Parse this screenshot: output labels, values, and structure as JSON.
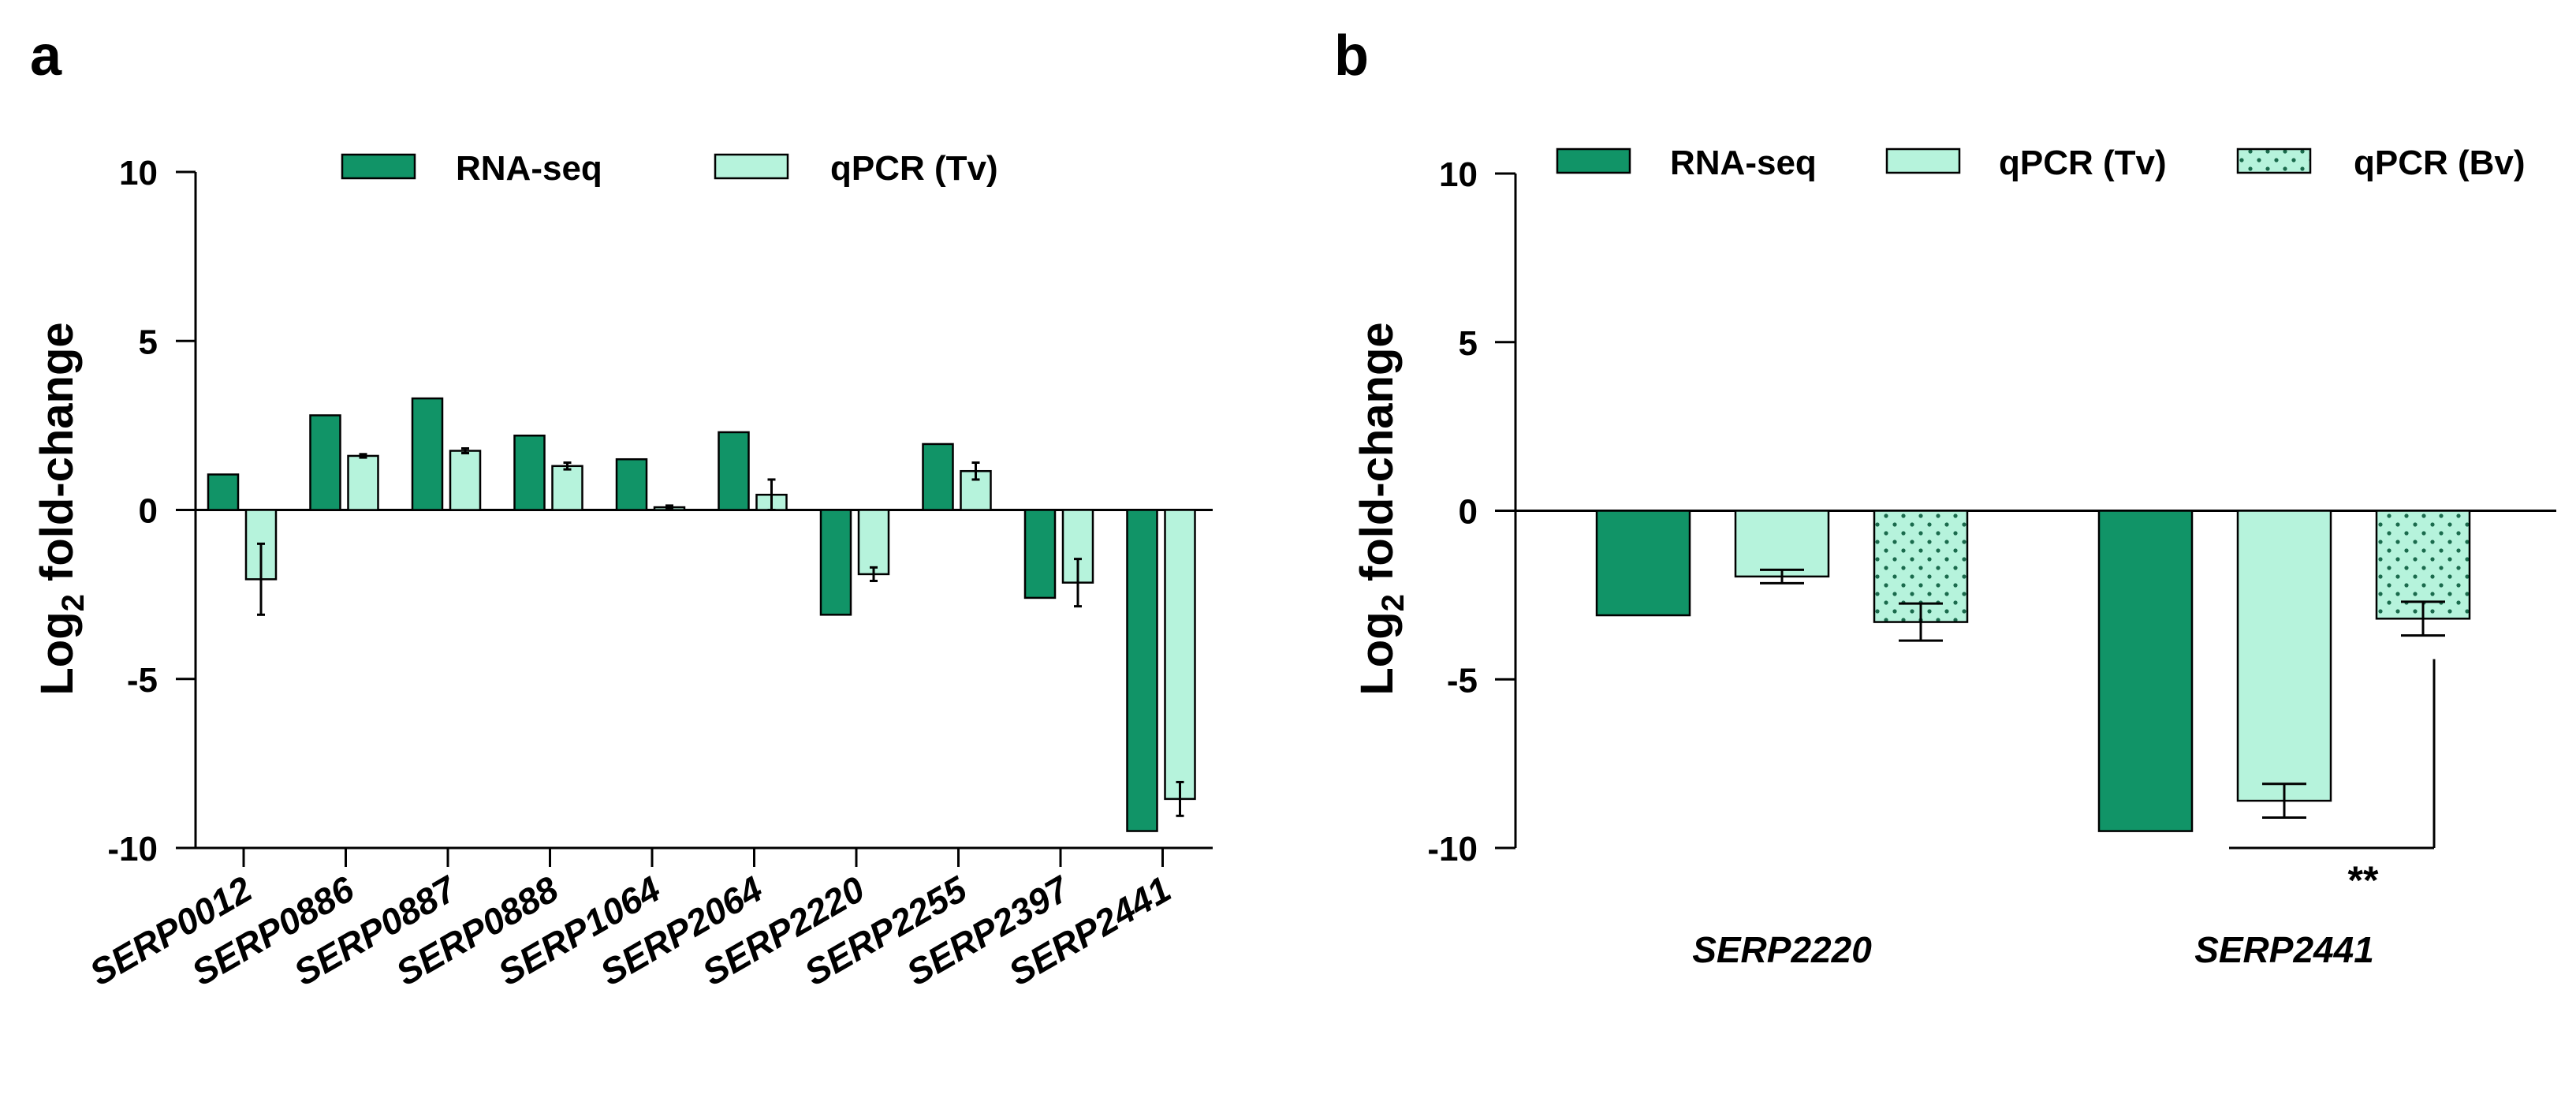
{
  "chart_data": [
    {
      "panel": "a",
      "type": "bar",
      "ylabel": "Log2 fold-change",
      "ylabel_main": "Log",
      "ylabel_sub": "2",
      "ylabel_rest": " fold-change",
      "ylim": [
        -10,
        10
      ],
      "yticks": [
        10,
        5,
        0,
        -5,
        -10
      ],
      "ytick_labels": [
        "10",
        "5",
        "0",
        "-5",
        "-10"
      ],
      "legend_position": "top",
      "categories": [
        "SERP0012",
        "SERP0886",
        "SERP0887",
        "SERP0888",
        "SERP1064",
        "SERP2064",
        "SERP2220",
        "SERP2255",
        "SERP2397",
        "SERP2441"
      ],
      "series": [
        {
          "name": "RNA-seq",
          "color": "#119467",
          "pattern": "solid",
          "values": [
            1.05,
            2.8,
            3.3,
            2.2,
            1.5,
            2.3,
            -3.1,
            1.95,
            -2.6,
            -9.5
          ],
          "errors": [
            null,
            null,
            null,
            null,
            null,
            null,
            null,
            null,
            null,
            null
          ]
        },
        {
          "name": "qPCR (Tv)",
          "color": "#b6f3dc",
          "pattern": "solid",
          "values": [
            -2.05,
            1.6,
            1.75,
            1.3,
            0.08,
            0.45,
            -1.9,
            1.15,
            -2.15,
            -8.55
          ],
          "errors": [
            1.05,
            0.05,
            0.07,
            0.1,
            0.05,
            0.45,
            0.2,
            0.25,
            0.7,
            0.5
          ]
        }
      ]
    },
    {
      "panel": "b",
      "type": "bar",
      "ylabel": "Log2 fold-change",
      "ylabel_main": "Log",
      "ylabel_sub": "2",
      "ylabel_rest": " fold-change",
      "ylim": [
        -10,
        10
      ],
      "yticks": [
        10,
        5,
        0,
        -5,
        -10
      ],
      "ytick_labels": [
        "10",
        "5",
        "0",
        "-5",
        "-10"
      ],
      "legend_position": "top",
      "categories": [
        "SERP2220",
        "SERP2441"
      ],
      "series": [
        {
          "name": "RNA-seq",
          "color": "#119467",
          "pattern": "solid",
          "values": [
            -3.1,
            -9.5
          ],
          "errors": [
            null,
            null
          ]
        },
        {
          "name": "qPCR (Tv)",
          "color": "#b6f3dc",
          "pattern": "solid",
          "values": [
            -1.95,
            -8.6
          ],
          "errors": [
            0.2,
            0.5
          ]
        },
        {
          "name": "qPCR (Bv)",
          "color": "#b6f3dc",
          "pattern": "dots",
          "values": [
            -3.3,
            -3.2
          ],
          "errors": [
            0.55,
            0.5
          ]
        }
      ],
      "annotations": [
        {
          "text": "**",
          "between": [
            "qPCR (Tv)",
            "qPCR (Bv)"
          ],
          "category": "SERP2441"
        }
      ]
    }
  ]
}
